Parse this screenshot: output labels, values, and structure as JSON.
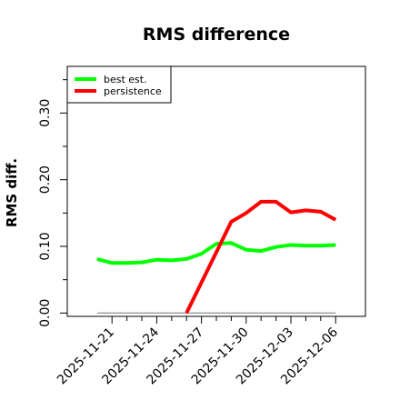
{
  "chart_data": {
    "type": "line",
    "title": "RMS difference",
    "xlabel": "",
    "ylabel": "RMS diff.",
    "ylim": [
      -0.005,
      0.37
    ],
    "yticks": [
      0.0,
      0.1,
      0.2,
      0.3
    ],
    "ytick_labels": [
      "0.00",
      "0.10",
      "0.20",
      "0.30"
    ],
    "xlim": [
      "2025-11-18",
      "2025-12-08"
    ],
    "xticks": [
      "2025-11-21",
      "2025-11-22",
      "2025-11-23",
      "2025-11-24",
      "2025-11-25",
      "2025-11-26",
      "2025-11-27",
      "2025-11-28",
      "2025-11-29",
      "2025-11-30",
      "2025-12-01",
      "2025-12-02",
      "2025-12-03",
      "2025-12-04",
      "2025-12-05",
      "2025-12-06"
    ],
    "xtick_labels": [
      "2025-11-21",
      "2025-11-24",
      "2025-11-27",
      "2025-11-30",
      "2025-12-03",
      "2025-12-06"
    ],
    "legend_position": "top-left",
    "grid": false,
    "baseline": {
      "y": 0.0,
      "x": [
        "2025-11-20",
        "2025-12-06"
      ],
      "color": "#808080"
    },
    "series": [
      {
        "name": "best est.",
        "color": "#00ff00",
        "x": [
          "2025-11-20",
          "2025-11-21",
          "2025-11-22",
          "2025-11-23",
          "2025-11-24",
          "2025-11-25",
          "2025-11-26",
          "2025-11-27",
          "2025-11-28",
          "2025-11-29",
          "2025-11-30",
          "2025-12-01",
          "2025-12-02",
          "2025-12-03",
          "2025-12-04",
          "2025-12-05",
          "2025-12-06"
        ],
        "values": [
          0.081,
          0.075,
          0.075,
          0.076,
          0.08,
          0.079,
          0.081,
          0.089,
          0.104,
          0.105,
          0.095,
          0.093,
          0.099,
          0.102,
          0.101,
          0.101,
          0.102
        ]
      },
      {
        "name": "persistence",
        "color": "#ff0000",
        "x": [
          "2025-11-26",
          "2025-11-29",
          "2025-11-30",
          "2025-12-01",
          "2025-12-02",
          "2025-12-03",
          "2025-12-04",
          "2025-12-05",
          "2025-12-06"
        ],
        "values": [
          0.0,
          0.137,
          0.15,
          0.167,
          0.167,
          0.151,
          0.154,
          0.152,
          0.14
        ]
      }
    ]
  }
}
